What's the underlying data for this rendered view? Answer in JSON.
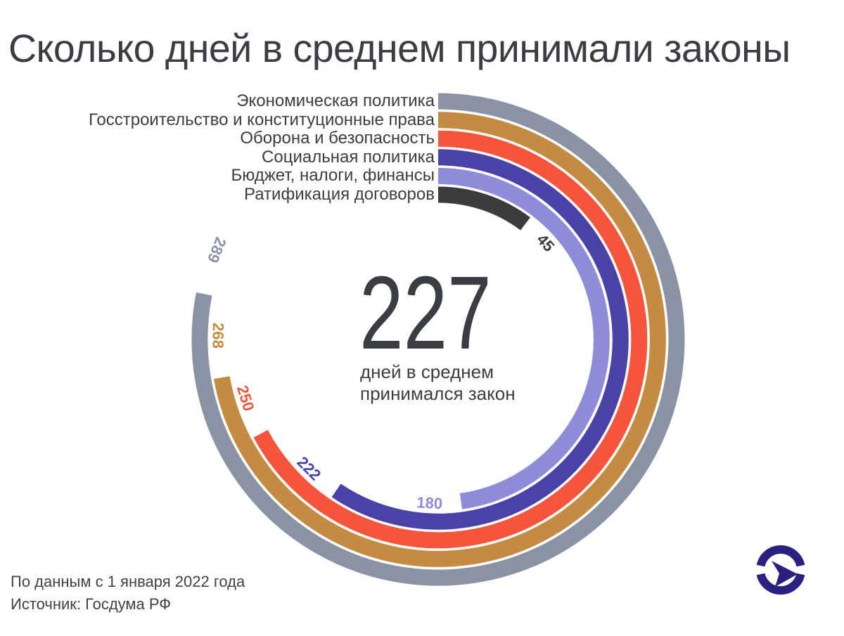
{
  "title": "Сколько дней в среднем принимали законы",
  "chart_data": {
    "type": "radial-bar",
    "title": "Сколько дней в среднем принимали законы",
    "unit": "дней",
    "scale": "1 degree per day, arcs start at 12 o'clock and sweep clockwise",
    "categories": [
      "Экономическая политика",
      "Госстроительство и конституционные права",
      "Оборона и безопасность",
      "Социальная политика",
      "Бюджет, налоги, финансы",
      "Ратификация договоров"
    ],
    "values": [
      289,
      268,
      250,
      222,
      180,
      45
    ],
    "colors": [
      "#8a93a5",
      "#c48c42",
      "#f5543d",
      "#4a42a6",
      "#8e8cd8",
      "#3e3b3c"
    ],
    "center": {
      "value": "227",
      "label_line1": "дней в среднем",
      "label_line2": "принимался закон"
    }
  },
  "footer": {
    "line1": "По данным с 1 января 2022 года",
    "line2": "Источник: Госдума РФ"
  },
  "logo": {
    "name": "duma-tv-logo",
    "color": "#2a2082"
  },
  "text_color": "#3a3d42"
}
